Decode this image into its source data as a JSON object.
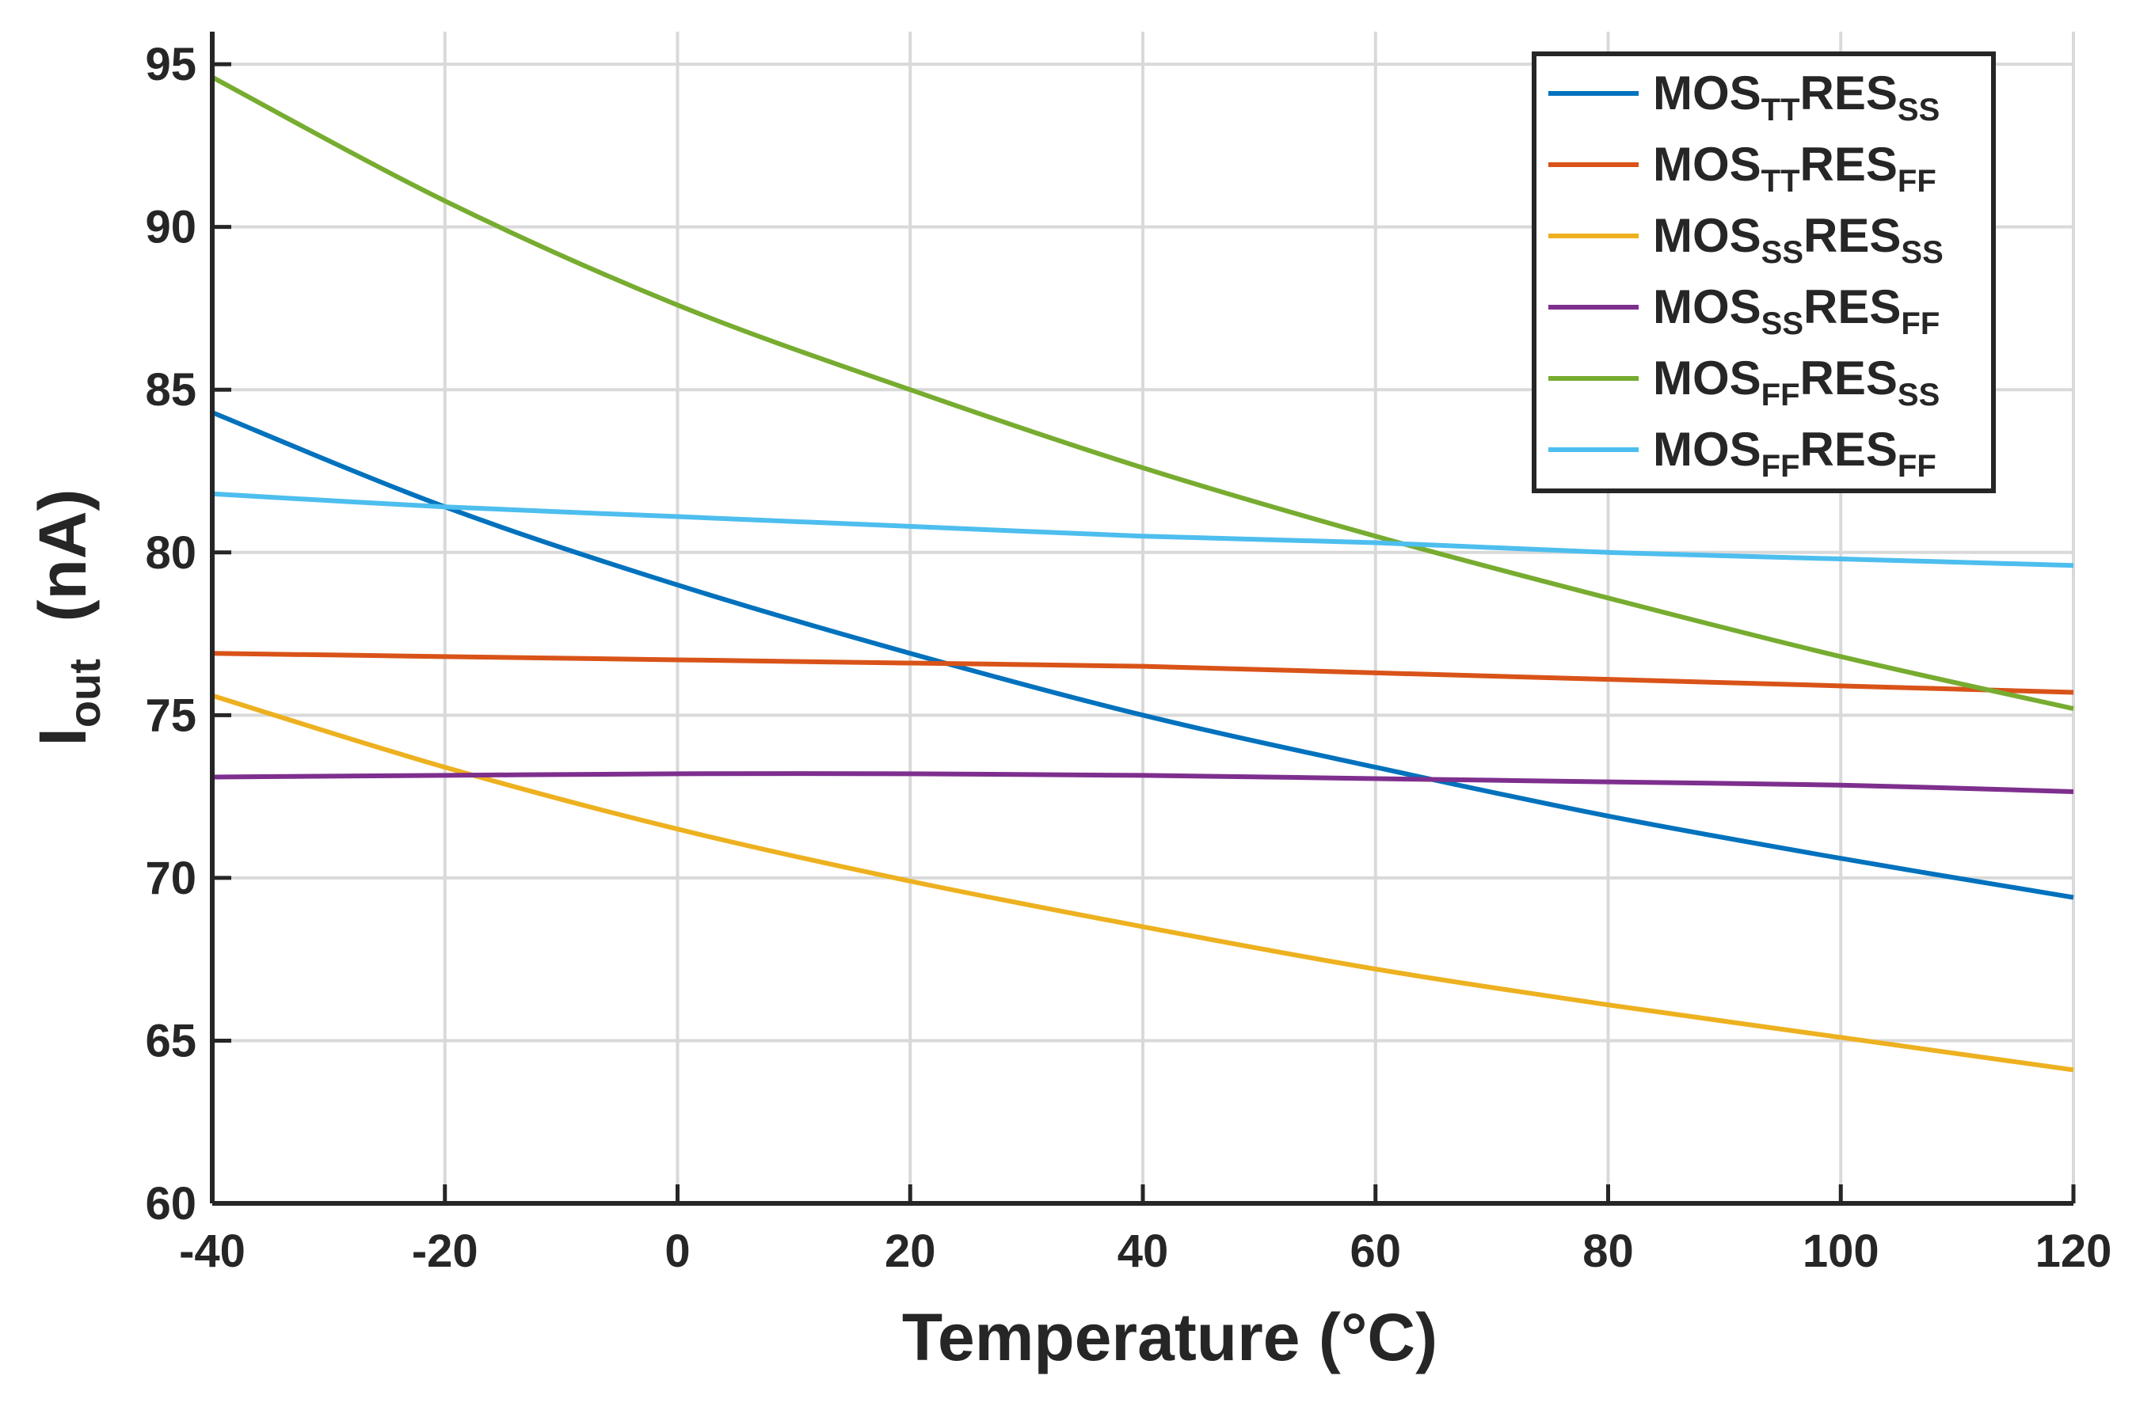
{
  "chart_data": {
    "type": "line",
    "title": "",
    "xlabel": "Temperature  (°C)",
    "ylabel": {
      "main": "I",
      "sub": "out",
      "rest": "  (nA)"
    },
    "xlim": [
      -40,
      120
    ],
    "ylim": [
      60,
      96
    ],
    "xticks": [
      -40,
      -20,
      0,
      20,
      40,
      60,
      80,
      100,
      120
    ],
    "yticks": [
      60,
      65,
      70,
      75,
      80,
      85,
      90,
      95
    ],
    "grid": true,
    "legend_position": "top-right",
    "x": [
      -40,
      -20,
      0,
      20,
      40,
      60,
      80,
      100,
      120
    ],
    "series": [
      {
        "name": "MOS_TT RES_SS",
        "label": {
          "a": "MOS",
          "b": "TT",
          "c": "RES",
          "d": "SS"
        },
        "color": "#0072BD",
        "values": [
          84.3,
          81.4,
          79.0,
          76.9,
          75.0,
          73.4,
          71.9,
          70.6,
          69.4
        ]
      },
      {
        "name": "MOS_TT RES_FF",
        "label": {
          "a": "MOS",
          "b": "TT",
          "c": "RES",
          "d": "FF"
        },
        "color": "#D95319",
        "values": [
          76.9,
          76.8,
          76.7,
          76.6,
          76.5,
          76.3,
          76.1,
          75.9,
          75.7
        ]
      },
      {
        "name": "MOS_SS RES_SS",
        "label": {
          "a": "MOS",
          "b": "SS",
          "c": "RES",
          "d": "SS"
        },
        "color": "#EDB120",
        "values": [
          75.6,
          73.4,
          71.5,
          69.9,
          68.5,
          67.2,
          66.1,
          65.1,
          64.1
        ]
      },
      {
        "name": "MOS_SS RES_FF",
        "label": {
          "a": "MOS",
          "b": "SS",
          "c": "RES",
          "d": "FF"
        },
        "color": "#7E2F8E",
        "values": [
          73.1,
          73.15,
          73.2,
          73.2,
          73.15,
          73.05,
          72.95,
          72.85,
          72.65
        ]
      },
      {
        "name": "MOS_FF RES_SS",
        "label": {
          "a": "MOS",
          "b": "FF",
          "c": "RES",
          "d": "SS"
        },
        "color": "#77AC30",
        "values": [
          94.6,
          90.8,
          87.6,
          85.0,
          82.6,
          80.5,
          78.6,
          76.8,
          75.2
        ]
      },
      {
        "name": "MOS_FF RES_FF",
        "label": {
          "a": "MOS",
          "b": "FF",
          "c": "RES",
          "d": "FF"
        },
        "color": "#4DBEEE",
        "values": [
          81.8,
          81.4,
          81.1,
          80.8,
          80.5,
          80.3,
          80.0,
          79.8,
          79.6
        ]
      }
    ]
  },
  "colors": {
    "axis": "#262626",
    "grid": "#d9d9d9",
    "legend_border": "#262626",
    "background": "#ffffff"
  }
}
